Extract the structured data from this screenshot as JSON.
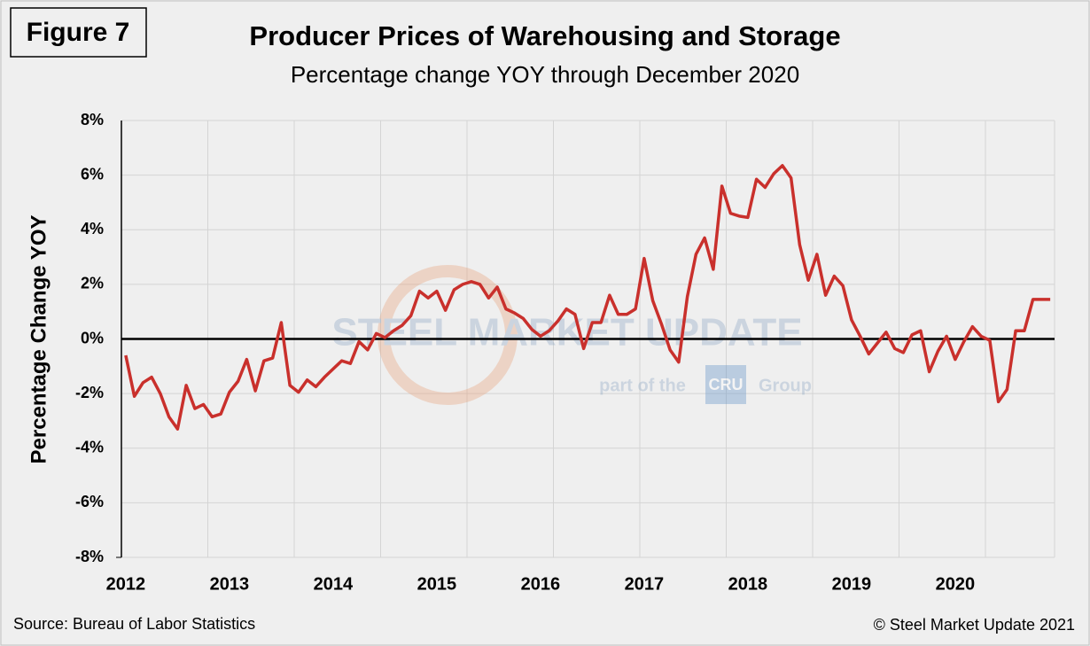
{
  "chart_data": {
    "type": "line",
    "figure_label": "Figure 7",
    "title": "Producer Prices of Warehousing and Storage",
    "subtitle": "Percentage change YOY through December 2020",
    "y_label": "Percentage Change YOY",
    "source": "Source: Bureau of Labor Statistics",
    "copyright": "© Steel Market Update 2021",
    "watermark": {
      "brand": "STEEL MARKET UPDATE",
      "part_of": "part of the",
      "cru": "CRU",
      "group": "Group"
    },
    "categories": [
      "2012",
      null,
      null,
      null,
      null,
      null,
      null,
      null,
      null,
      null,
      null,
      null,
      "2013",
      null,
      null,
      null,
      null,
      null,
      null,
      null,
      null,
      null,
      null,
      null,
      "2014",
      null,
      null,
      null,
      null,
      null,
      null,
      null,
      null,
      null,
      null,
      null,
      "2015",
      null,
      null,
      null,
      null,
      null,
      null,
      null,
      null,
      null,
      null,
      null,
      "2016",
      null,
      null,
      null,
      null,
      null,
      null,
      null,
      null,
      null,
      null,
      null,
      "2017",
      null,
      null,
      null,
      null,
      null,
      null,
      null,
      null,
      null,
      null,
      null,
      "2018",
      null,
      null,
      null,
      null,
      null,
      null,
      null,
      null,
      null,
      null,
      null,
      "2019",
      null,
      null,
      null,
      null,
      null,
      null,
      null,
      null,
      null,
      null,
      null,
      "2020",
      null,
      null,
      null,
      null,
      null,
      null,
      null,
      null,
      null,
      null,
      null
    ],
    "values": [
      -0.6,
      -2.1,
      -1.6,
      -1.4,
      -2.0,
      -2.85,
      -3.3,
      -1.7,
      -2.55,
      -2.4,
      -2.85,
      -2.75,
      -1.95,
      -1.55,
      -0.75,
      -1.9,
      -0.8,
      -0.7,
      0.6,
      -1.7,
      -1.95,
      -1.5,
      -1.75,
      -1.4,
      -1.1,
      -0.8,
      -0.9,
      -0.1,
      -0.4,
      0.2,
      0.05,
      0.3,
      0.5,
      0.85,
      1.75,
      1.5,
      1.75,
      1.05,
      1.8,
      2.0,
      2.1,
      2.0,
      1.5,
      1.9,
      1.1,
      0.95,
      0.75,
      0.35,
      0.1,
      0.3,
      0.65,
      1.1,
      0.9,
      -0.35,
      0.6,
      0.6,
      1.6,
      0.9,
      0.9,
      1.1,
      2.95,
      1.4,
      0.55,
      -0.4,
      -0.85,
      1.55,
      3.1,
      3.7,
      2.55,
      5.6,
      4.6,
      4.5,
      4.45,
      5.85,
      5.55,
      6.05,
      6.35,
      5.9,
      3.45,
      2.15,
      3.1,
      1.6,
      2.3,
      1.95,
      0.7,
      0.1,
      -0.55,
      -0.15,
      0.25,
      -0.35,
      -0.5,
      0.15,
      0.3,
      -1.2,
      -0.45,
      0.1,
      -0.75,
      -0.1,
      0.45,
      0.1,
      -0.05,
      -2.3,
      -1.85,
      0.3,
      0.3,
      1.45,
      1.45,
      1.45
    ],
    "color": "#c9302c",
    "ylim": [
      -8,
      8
    ],
    "yticks": [
      {
        "value": -8,
        "label": "-8%"
      },
      {
        "value": -6,
        "label": "-6%"
      },
      {
        "value": -4,
        "label": "-4%"
      },
      {
        "value": -2,
        "label": "-2%"
      },
      {
        "value": 0,
        "label": "0%"
      },
      {
        "value": 2,
        "label": "2%"
      },
      {
        "value": 4,
        "label": "4%"
      },
      {
        "value": 6,
        "label": "6%"
      },
      {
        "value": 8,
        "label": "8%"
      }
    ],
    "grid": true
  }
}
